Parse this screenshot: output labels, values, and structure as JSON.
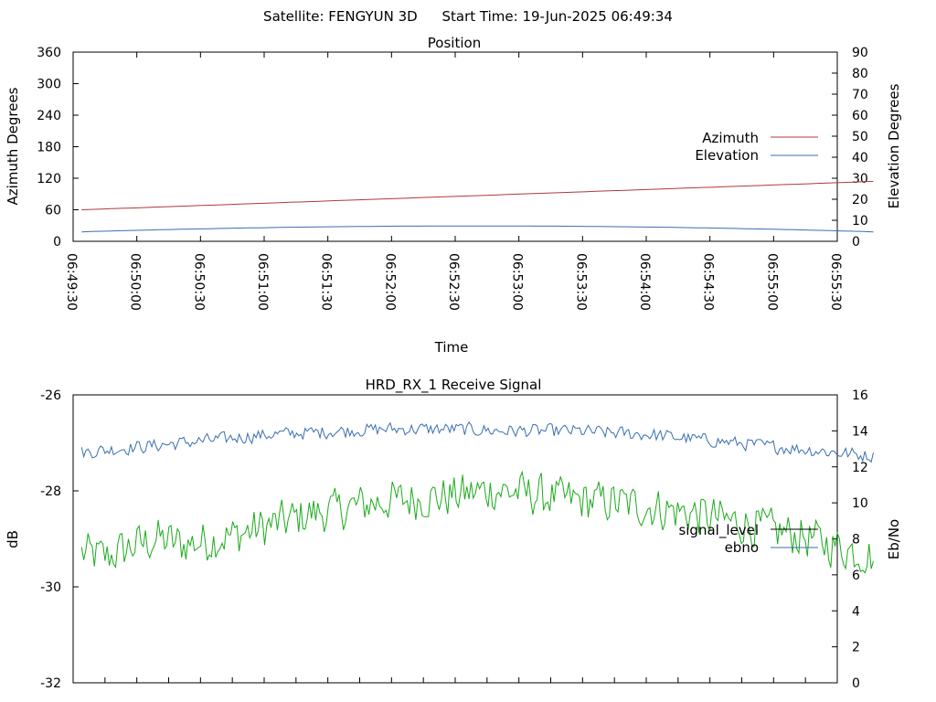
{
  "header": {
    "satellite_label": "Satellite: FENGYUN 3D",
    "start_time_label": "Start Time: 19-Jun-2025 06:49:34"
  },
  "colors": {
    "azimuth": "#b03a3a",
    "elevation": "#3a6eb0",
    "signal_level": "#1aaa1a",
    "ebno": "#3a6eb0",
    "legend_black": "#000000"
  },
  "chart_data": [
    {
      "type": "line",
      "title": "Position",
      "xlabel": "Time",
      "ylabel": "Azimuth Degrees",
      "y2label": "Elevation Degrees",
      "ylim": [
        0,
        360
      ],
      "y2lim": [
        0,
        90
      ],
      "yticks": [
        "0",
        "60",
        "120",
        "180",
        "240",
        "300",
        "360"
      ],
      "y2ticks": [
        "0",
        "10",
        "20",
        "30",
        "40",
        "50",
        "60",
        "70",
        "80",
        "90"
      ],
      "xticks": [
        "06:49:30",
        "06:50:00",
        "06:50:30",
        "06:51:00",
        "06:51:30",
        "06:52:00",
        "06:52:30",
        "06:53:00",
        "06:53:30",
        "06:54:00",
        "06:54:30",
        "06:55:00",
        "06:55:30"
      ],
      "xlim_seconds_of_day": [
        24570,
        24930
      ],
      "grid": false,
      "legend_position": "right",
      "series": [
        {
          "name": "Azimuth",
          "axis": "y",
          "x_start": "06:49:34",
          "x_end": "06:55:47",
          "values": [
            60,
            114
          ]
        },
        {
          "name": "Elevation",
          "axis": "y2",
          "x_start": "06:49:34",
          "x_end": "06:55:47",
          "values": [
            4.5,
            5.2,
            5.8,
            6.3,
            6.7,
            7.0,
            7.2,
            7.3,
            7.3,
            7.2,
            7.0,
            6.7,
            6.3,
            5.8,
            5.2,
            4.5
          ]
        }
      ]
    },
    {
      "type": "line",
      "title": "HRD_RX_1 Receive Signal",
      "ylabel": "dB",
      "y2label": "Eb/No",
      "ylim": [
        -32,
        -26
      ],
      "y2lim": [
        0,
        16
      ],
      "yticks": [
        "-32",
        "-30",
        "-28",
        "-26"
      ],
      "y2ticks": [
        "0",
        "2",
        "4",
        "6",
        "8",
        "10",
        "12",
        "14",
        "16"
      ],
      "grid": false,
      "legend_position": "right",
      "series": [
        {
          "name": "signal_level",
          "axis": "y2",
          "x_start": "06:49:34",
          "x_end": "06:55:47",
          "values": [
            7.2,
            7.0,
            7.6,
            8.0,
            7.7,
            7.9,
            8.2,
            8.6,
            9.0,
            9.4,
            9.6,
            9.9,
            10.1,
            10.2,
            10.3,
            10.5,
            10.7,
            10.6,
            10.4,
            10.2,
            10.1,
            10.0,
            9.8,
            9.6,
            9.4,
            9.1,
            8.8,
            8.5,
            8.2,
            7.8,
            7.4,
            7.0
          ],
          "noise_amplitude": 1.1
        },
        {
          "name": "ebno",
          "axis": "y2",
          "x_start": "06:49:34",
          "x_end": "06:55:47",
          "values": [
            12.8,
            13.0,
            13.2,
            13.4,
            13.6,
            13.8,
            13.9,
            14.0,
            14.1,
            14.1,
            14.1,
            14.0,
            14.0,
            14.0,
            13.9,
            13.8,
            13.6,
            13.4,
            13.2,
            13.0,
            12.8,
            12.6
          ],
          "noise_amplitude": 0.35
        }
      ]
    }
  ]
}
